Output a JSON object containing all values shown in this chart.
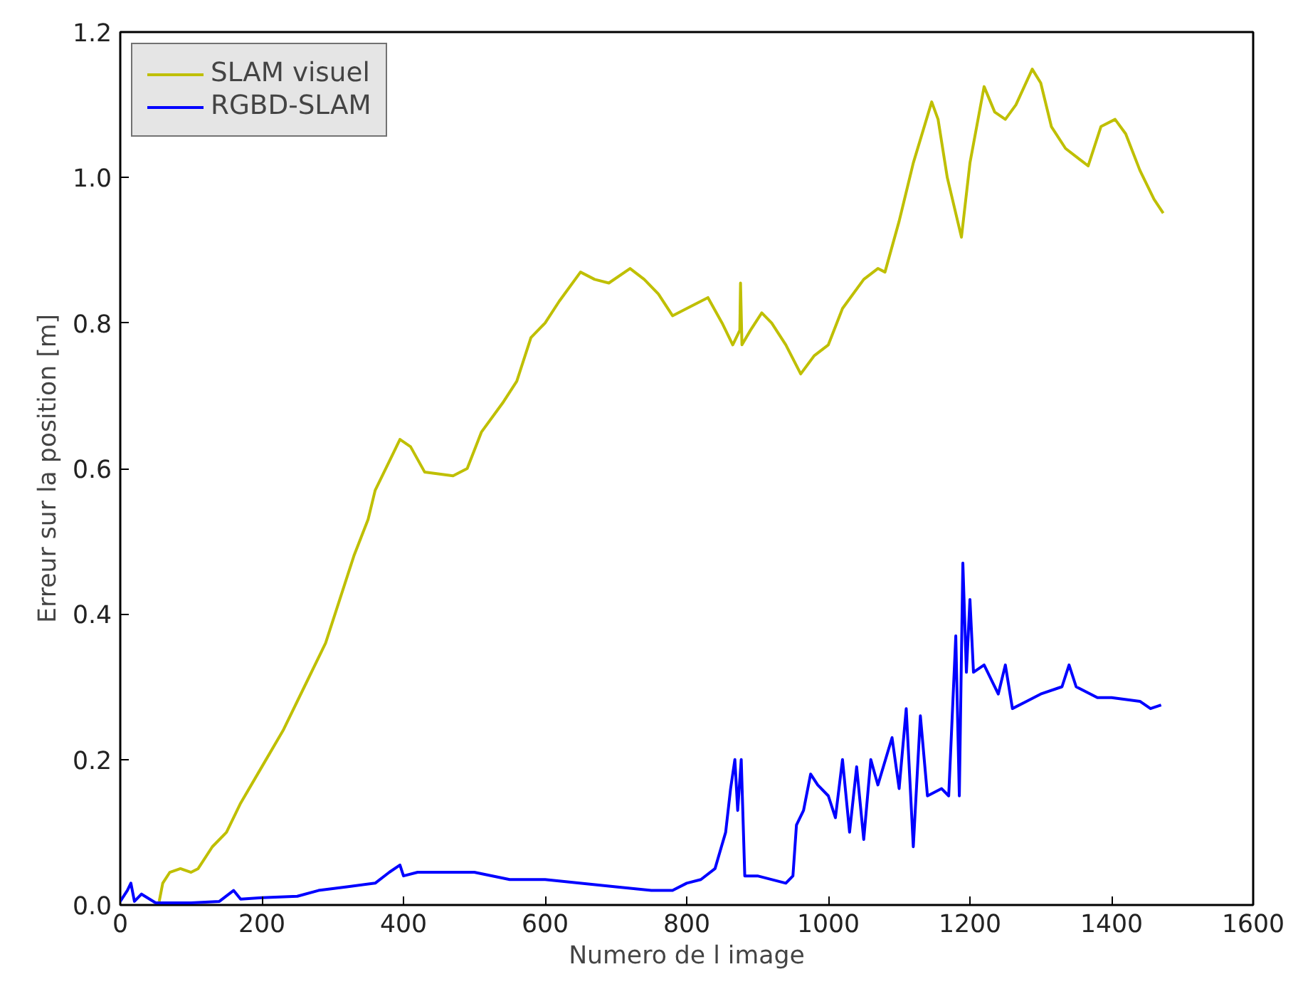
{
  "chart_data": {
    "type": "line",
    "xlabel": "Numero de l image",
    "ylabel": "Erreur sur la position [m]",
    "xlim": [
      0,
      1600
    ],
    "ylim": [
      0,
      1.2
    ],
    "xticks": [
      0,
      200,
      400,
      600,
      800,
      1000,
      1200,
      1400,
      1600
    ],
    "yticks": [
      {
        "value": 0,
        "label": "0.0"
      },
      {
        "value": 0.2,
        "label": "0.2"
      },
      {
        "value": 0.4,
        "label": "0.4"
      },
      {
        "value": 0.6,
        "label": "0.6"
      },
      {
        "value": 0.8,
        "label": "0.8"
      },
      {
        "value": 1.0,
        "label": "1.0"
      },
      {
        "value": 1.2,
        "label": "1.2"
      }
    ],
    "grid": false,
    "legend": "top left",
    "marker": "none",
    "line_style": "solid",
    "series": [
      {
        "name": "SLAM visuel",
        "color": "#bfbf00",
        "x": [
          55,
          60,
          70,
          85,
          100,
          110,
          130,
          150,
          170,
          200,
          230,
          260,
          290,
          310,
          330,
          350,
          360,
          380,
          395,
          410,
          430,
          470,
          490,
          510,
          540,
          560,
          580,
          600,
          620,
          650,
          670,
          690,
          720,
          740,
          760,
          780,
          800,
          830,
          850,
          865,
          875,
          876,
          878,
          890,
          906,
          920,
          940,
          961,
          980,
          1000,
          1020,
          1050,
          1070,
          1080,
          1100,
          1120,
          1146,
          1155,
          1168,
          1188,
          1200,
          1220,
          1235,
          1250,
          1265,
          1288,
          1300,
          1315,
          1335,
          1355,
          1367,
          1385,
          1405,
          1420,
          1440,
          1460,
          1473
        ],
        "values": [
          0.005,
          0.03,
          0.045,
          0.05,
          0.045,
          0.05,
          0.08,
          0.1,
          0.14,
          0.19,
          0.24,
          0.3,
          0.36,
          0.42,
          0.48,
          0.53,
          0.57,
          0.61,
          0.64,
          0.63,
          0.595,
          0.59,
          0.6,
          0.65,
          0.69,
          0.72,
          0.78,
          0.8,
          0.83,
          0.87,
          0.86,
          0.855,
          0.875,
          0.86,
          0.84,
          0.81,
          0.82,
          0.835,
          0.8,
          0.77,
          0.79,
          0.855,
          0.77,
          0.79,
          0.814,
          0.8,
          0.77,
          0.73,
          0.755,
          0.77,
          0.82,
          0.86,
          0.875,
          0.87,
          0.94,
          1.02,
          1.104,
          1.08,
          1.0,
          0.918,
          1.02,
          1.125,
          1.09,
          1.08,
          1.1,
          1.149,
          1.13,
          1.07,
          1.04,
          1.025,
          1.016,
          1.07,
          1.08,
          1.06,
          1.01,
          0.97,
          0.951
        ]
      },
      {
        "name": "RGBD-SLAM",
        "color": "#0000ff",
        "x": [
          0,
          10,
          15,
          20,
          30,
          50,
          100,
          140,
          160,
          170,
          200,
          250,
          280,
          320,
          360,
          380,
          395,
          400,
          420,
          500,
          550,
          600,
          700,
          750,
          780,
          800,
          820,
          840,
          855,
          862,
          868,
          872,
          877,
          882,
          900,
          940,
          950,
          955,
          965,
          975,
          985,
          1000,
          1010,
          1020,
          1030,
          1040,
          1050,
          1060,
          1070,
          1090,
          1100,
          1110,
          1120,
          1130,
          1140,
          1160,
          1170,
          1180,
          1185,
          1190,
          1195,
          1200,
          1205,
          1220,
          1240,
          1250,
          1260,
          1280,
          1300,
          1330,
          1340,
          1350,
          1380,
          1400,
          1440,
          1455,
          1470
        ],
        "values": [
          0.005,
          0.02,
          0.03,
          0.005,
          0.015,
          0.003,
          0.003,
          0.005,
          0.02,
          0.008,
          0.01,
          0.012,
          0.02,
          0.025,
          0.03,
          0.045,
          0.055,
          0.04,
          0.045,
          0.045,
          0.035,
          0.035,
          0.025,
          0.02,
          0.02,
          0.03,
          0.035,
          0.05,
          0.1,
          0.16,
          0.2,
          0.13,
          0.2,
          0.04,
          0.04,
          0.03,
          0.04,
          0.11,
          0.13,
          0.18,
          0.165,
          0.15,
          0.12,
          0.2,
          0.1,
          0.19,
          0.09,
          0.2,
          0.165,
          0.23,
          0.16,
          0.27,
          0.08,
          0.26,
          0.15,
          0.16,
          0.15,
          0.37,
          0.15,
          0.47,
          0.32,
          0.42,
          0.32,
          0.33,
          0.29,
          0.33,
          0.27,
          0.28,
          0.29,
          0.3,
          0.33,
          0.3,
          0.285,
          0.285,
          0.28,
          0.27,
          0.275
        ]
      }
    ]
  }
}
